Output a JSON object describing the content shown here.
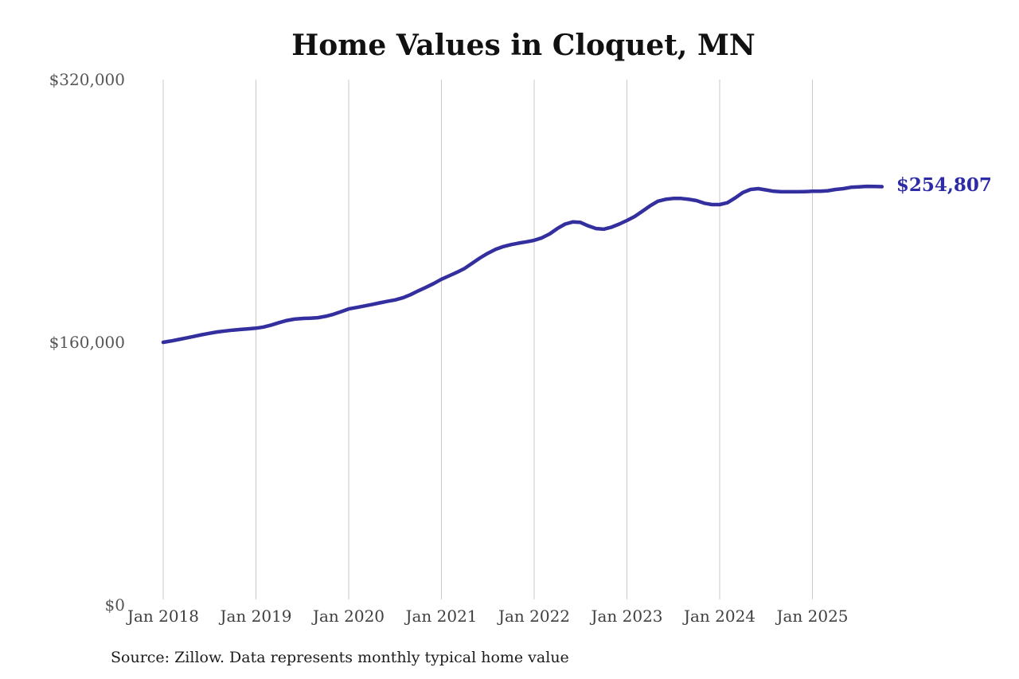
{
  "page": {
    "background": "#ffffff"
  },
  "chart": {
    "title": "Home Values in Cloquet, MN",
    "end_label": "$254,807",
    "source": "Source: Zillow. Data represents monthly typical home value"
  },
  "chart_data": {
    "type": "line",
    "title": "Home Values in Cloquet, MN",
    "series_name": "Monthly typical home value",
    "x": [
      "Jan 2018",
      "Feb 2018",
      "Mar 2018",
      "Apr 2018",
      "May 2018",
      "Jun 2018",
      "Jul 2018",
      "Aug 2018",
      "Sep 2018",
      "Oct 2018",
      "Nov 2018",
      "Dec 2018",
      "Jan 2019",
      "Feb 2019",
      "Mar 2019",
      "Apr 2019",
      "May 2019",
      "Jun 2019",
      "Jul 2019",
      "Aug 2019",
      "Sep 2019",
      "Oct 2019",
      "Nov 2019",
      "Dec 2019",
      "Jan 2020",
      "Feb 2020",
      "Mar 2020",
      "Apr 2020",
      "May 2020",
      "Jun 2020",
      "Jul 2020",
      "Aug 2020",
      "Sep 2020",
      "Oct 2020",
      "Nov 2020",
      "Dec 2020",
      "Jan 2021",
      "Feb 2021",
      "Mar 2021",
      "Apr 2021",
      "May 2021",
      "Jun 2021",
      "Jul 2021",
      "Aug 2021",
      "Sep 2021",
      "Oct 2021",
      "Nov 2021",
      "Dec 2021",
      "Jan 2022",
      "Feb 2022",
      "Mar 2022",
      "Apr 2022",
      "May 2022",
      "Jun 2022",
      "Jul 2022",
      "Aug 2022",
      "Sep 2022",
      "Oct 2022",
      "Nov 2022",
      "Dec 2022",
      "Jan 2023",
      "Feb 2023",
      "Mar 2023",
      "Apr 2023",
      "May 2023",
      "Jun 2023",
      "Jul 2023",
      "Aug 2023",
      "Sep 2023",
      "Oct 2023",
      "Nov 2023",
      "Dec 2023",
      "Jan 2024",
      "Feb 2024",
      "Mar 2024",
      "Apr 2024",
      "May 2024",
      "Jun 2024",
      "Jul 2024",
      "Aug 2024",
      "Sep 2024",
      "Oct 2024",
      "Nov 2024",
      "Dec 2024",
      "Jan 2025",
      "Feb 2025",
      "Mar 2025",
      "Apr 2025",
      "May 2025",
      "Jun 2025",
      "Jul 2025",
      "Aug 2025",
      "Sep 2025",
      "Oct 2025"
    ],
    "values": [
      160000,
      160800,
      161700,
      162600,
      163600,
      164600,
      165500,
      166300,
      166900,
      167400,
      167800,
      168200,
      168600,
      169300,
      170500,
      172000,
      173300,
      174100,
      174500,
      174700,
      175000,
      175800,
      177000,
      178600,
      180300,
      181200,
      182100,
      183000,
      184000,
      184900,
      185800,
      187100,
      189000,
      191300,
      193500,
      195800,
      198400,
      200500,
      202600,
      205000,
      208200,
      211400,
      214200,
      216600,
      218300,
      219500,
      220400,
      221200,
      222100,
      223600,
      226000,
      229300,
      232000,
      233300,
      233000,
      230900,
      229300,
      228900,
      230100,
      232000,
      234200,
      236600,
      239800,
      243100,
      245900,
      247100,
      247600,
      247600,
      247100,
      246300,
      244700,
      243900,
      243900,
      245000,
      247900,
      251200,
      253100,
      253600,
      252800,
      252000,
      251700,
      251700,
      251700,
      251800,
      252000,
      252000,
      252300,
      253100,
      253600,
      254400,
      254700,
      255000,
      254900,
      254807
    ],
    "last_value": 254807,
    "last_value_label": "$254,807",
    "ylim": [
      0,
      320000
    ],
    "yticks": [
      {
        "value": 320000,
        "label": "$320,000"
      },
      {
        "value": 160000,
        "label": "$160,000"
      },
      {
        "value": 0,
        "label": "$0"
      }
    ],
    "xticks": [
      "Jan 2018",
      "Jan 2019",
      "Jan 2020",
      "Jan 2021",
      "Jan 2022",
      "Jan 2023",
      "Jan 2024",
      "Jan 2025"
    ],
    "grid": "vertical-only",
    "legend": "none",
    "line_color": "#332f9f",
    "annotation_color": "#2e2ba6",
    "gridline_color": "#c9c9c9",
    "source_note": "Source: Zillow. Data represents monthly typical home value"
  }
}
